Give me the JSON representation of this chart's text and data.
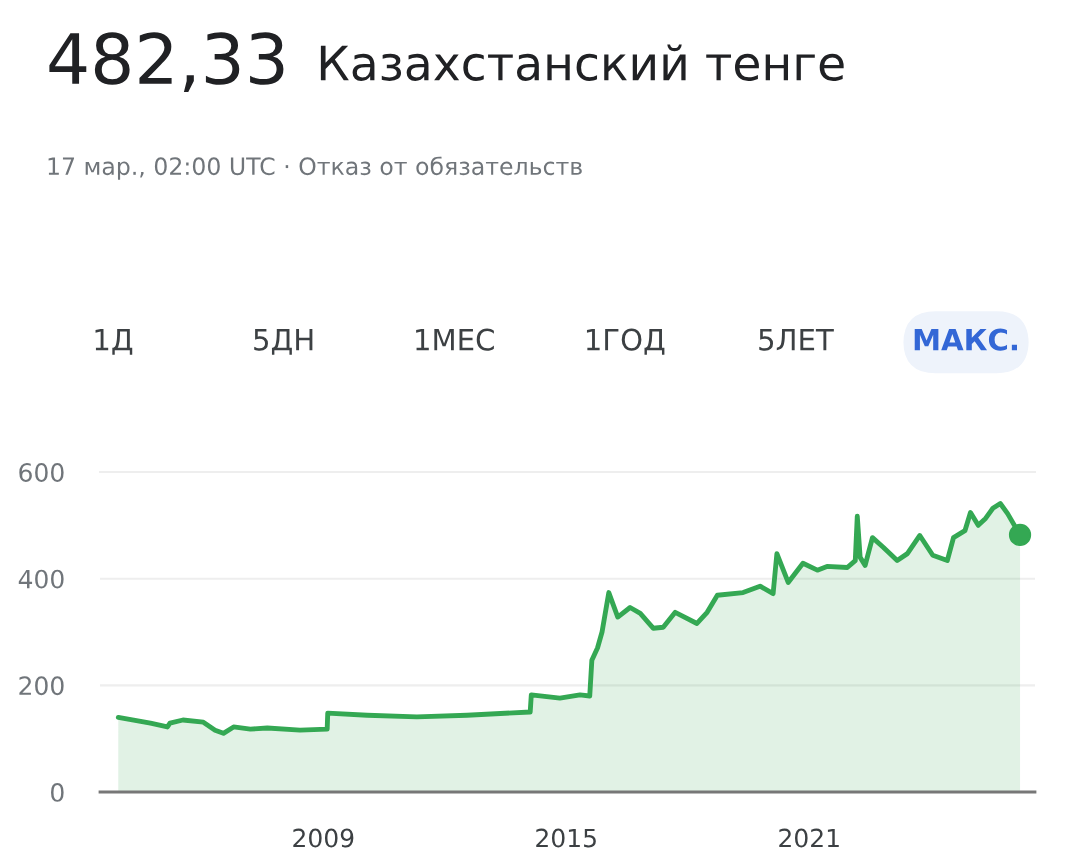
{
  "chart_data": {
    "type": "area",
    "title": "482,33",
    "subtitle": "17 мар., 02:00 UTC · Отказ от обязательств",
    "annotations": [
      "Казахстанский тенге",
      "1Д",
      "5ДН",
      "1МЕС",
      "1ГОД",
      "5ЛЕТ",
      "МАКС."
    ],
    "x": [
      "2003-12-10",
      "2004-09-25",
      "2005-02-25",
      "2005-03-20",
      "2005-07-15",
      "2006-01-15",
      "2006-05-01",
      "2006-07-15",
      "2006-10-15",
      "2007-03-15",
      "2007-08-15",
      "2008-06-05",
      "2009-02-05",
      "2009-02-10",
      "2010-02-01",
      "2011-04-25",
      "2012-07-20",
      "2014-02-10",
      "2014-02-20",
      "2014-11-05",
      "2015-05-05",
      "2015-08-01",
      "2015-08-20",
      "2015-10-10",
      "2015-11-20",
      "2016-01-20",
      "2016-04-10",
      "2016-07-30",
      "2016-10-30",
      "2017-02-25",
      "2017-05-25",
      "2017-09-10",
      "2018-03-25",
      "2018-06-25",
      "2018-09-25",
      "2019-05-15",
      "2019-10-15",
      "2020-02-10",
      "2020-03-15",
      "2020-06-25",
      "2020-11-05",
      "2021-03-15",
      "2021-06-10",
      "2021-12-10",
      "2022-02-20",
      "2022-03-10",
      "2022-04-05",
      "2022-05-20",
      "2022-07-25",
      "2022-10-30",
      "2023-03-05",
      "2023-06-05",
      "2023-09-25",
      "2024-01-20",
      "2024-05-30",
      "2024-07-25",
      "2024-11-05",
      "2024-12-25",
      "2025-03-05",
      "2025-05-10",
      "2025-07-15",
      "2025-09-20",
      "2025-11-25",
      "2026-03-17"
    ],
    "series": [
      {
        "color": "#34a853",
        "values": [
          140,
          129,
          122,
          129,
          135,
          131,
          116,
          110,
          122,
          118,
          120,
          116,
          118,
          148,
          144,
          141,
          144,
          150,
          182,
          176,
          182,
          180,
          247,
          270,
          300,
          374,
          328,
          346,
          335,
          307,
          309,
          337,
          316,
          337,
          369,
          374,
          386,
          372,
          447,
          393,
          429,
          416,
          423,
          421,
          434,
          517,
          440,
          425,
          477,
          459,
          434,
          447,
          481,
          444,
          434,
          477,
          490,
          524,
          500,
          513,
          532,
          541,
          522,
          482
        ]
      }
    ],
    "xlim": [
      "2003-06-28",
      "2026-07-30"
    ],
    "xticks": [
      {
        "value": "2009-01-01",
        "label": "2009"
      },
      {
        "value": "2015-01-01",
        "label": "2015"
      },
      {
        "value": "2021-01-01",
        "label": "2021"
      }
    ],
    "ylim": [
      0,
      600
    ],
    "yticks": [
      0,
      200,
      400,
      600
    ],
    "grid": "y",
    "legend": false
  }
}
